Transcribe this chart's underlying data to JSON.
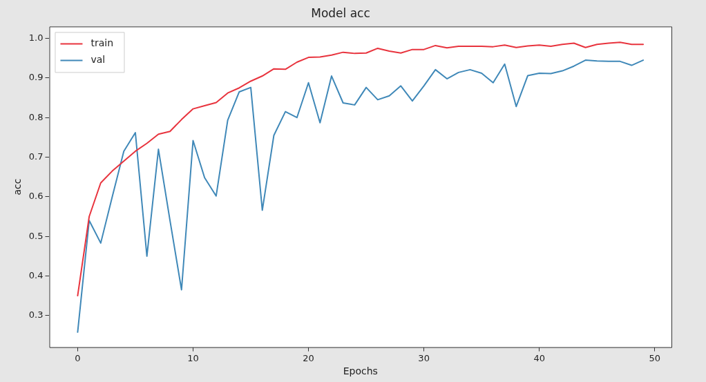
{
  "chart_data": {
    "type": "line",
    "title": "Model acc",
    "xlabel": "Epochs",
    "ylabel": "acc",
    "x": [
      0,
      1,
      2,
      3,
      4,
      5,
      6,
      7,
      8,
      9,
      10,
      11,
      12,
      13,
      14,
      15,
      16,
      17,
      18,
      19,
      20,
      21,
      22,
      23,
      24,
      25,
      26,
      27,
      28,
      29,
      30,
      31,
      32,
      33,
      34,
      35,
      36,
      37,
      38,
      39,
      40,
      41,
      42,
      43,
      44,
      45,
      46,
      47,
      48,
      49
    ],
    "series": [
      {
        "name": "train",
        "color": "#e8333d",
        "values": [
          0.35,
          0.55,
          0.635,
          0.665,
          0.69,
          0.715,
          0.735,
          0.758,
          0.765,
          0.795,
          0.822,
          0.83,
          0.838,
          0.862,
          0.875,
          0.892,
          0.905,
          0.923,
          0.922,
          0.94,
          0.952,
          0.953,
          0.958,
          0.965,
          0.962,
          0.963,
          0.975,
          0.968,
          0.963,
          0.972,
          0.972,
          0.982,
          0.976,
          0.98,
          0.98,
          0.98,
          0.979,
          0.983,
          0.977,
          0.981,
          0.983,
          0.98,
          0.985,
          0.988,
          0.977,
          0.985,
          0.988,
          0.99,
          0.985,
          0.985
        ]
      },
      {
        "name": "val",
        "color": "#3f88b8",
        "values": [
          0.258,
          0.54,
          0.483,
          0.6,
          0.715,
          0.762,
          0.45,
          0.72,
          0.54,
          0.365,
          0.742,
          0.648,
          0.602,
          0.793,
          0.865,
          0.876,
          0.566,
          0.755,
          0.815,
          0.8,
          0.888,
          0.787,
          0.905,
          0.837,
          0.832,
          0.876,
          0.845,
          0.855,
          0.88,
          0.842,
          0.88,
          0.921,
          0.898,
          0.914,
          0.921,
          0.912,
          0.888,
          0.935,
          0.828,
          0.906,
          0.912,
          0.911,
          0.918,
          0.93,
          0.945,
          0.943,
          0.942,
          0.942,
          0.932,
          0.945
        ]
      }
    ],
    "xlim": [
      -2.45,
      51.45
    ],
    "xticks": [
      0,
      10,
      20,
      30,
      40,
      50
    ],
    "ylim": [
      0.22,
      1.03
    ],
    "yticks": [
      0.3,
      0.4,
      0.5,
      0.6,
      0.7,
      0.8,
      0.9,
      {
        "value": 1,
        "label": "1.0"
      }
    ],
    "legend": "top left",
    "grid": false,
    "marker": "none",
    "line_style": "solid"
  }
}
